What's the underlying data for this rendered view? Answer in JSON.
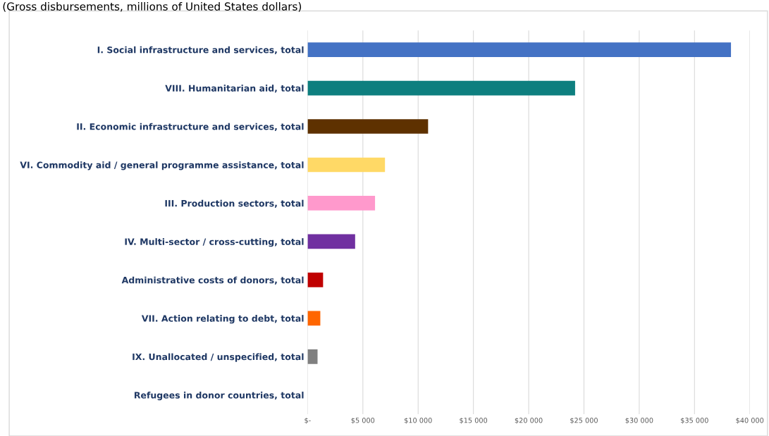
{
  "chart_data": {
    "type": "bar",
    "orientation": "horizontal",
    "subtitle": "(Gross disbursements, millions of United States dollars)",
    "categories": [
      "I. Social infrastructure and services, total",
      "VIII. Humanitarian aid, total",
      "II. Economic infrastructure and services, total",
      "VI. Commodity aid / general programme assistance, total",
      "III. Production sectors, total",
      "IV. Multi-sector / cross-cutting, total",
      "Administrative costs of donors, total",
      "VII. Action relating to debt, total",
      "IX. Unallocated / unspecified, total",
      "Refugees in donor countries, total"
    ],
    "values": [
      38300,
      24200,
      10900,
      7000,
      6100,
      4300,
      1400,
      1150,
      900,
      0
    ],
    "colors": [
      "#4472c4",
      "#0e7f7f",
      "#5e3100",
      "#ffd966",
      "#ff99cc",
      "#7030a0",
      "#c00000",
      "#ff6600",
      "#808080",
      "#a5a5a5"
    ],
    "xlim": [
      0,
      40000
    ],
    "xticks": [
      {
        "value": 0,
        "label": "$-"
      },
      {
        "value": 5000,
        "label": "$5 000"
      },
      {
        "value": 10000,
        "label": "$10 000"
      },
      {
        "value": 15000,
        "label": "$15 000"
      },
      {
        "value": 20000,
        "label": "$20 000"
      },
      {
        "value": 25000,
        "label": "$25 000"
      },
      {
        "value": 30000,
        "label": "$30 000"
      },
      {
        "value": 35000,
        "label": "$35 000"
      },
      {
        "value": 40000,
        "label": "$40 000"
      }
    ],
    "grid": "x"
  }
}
